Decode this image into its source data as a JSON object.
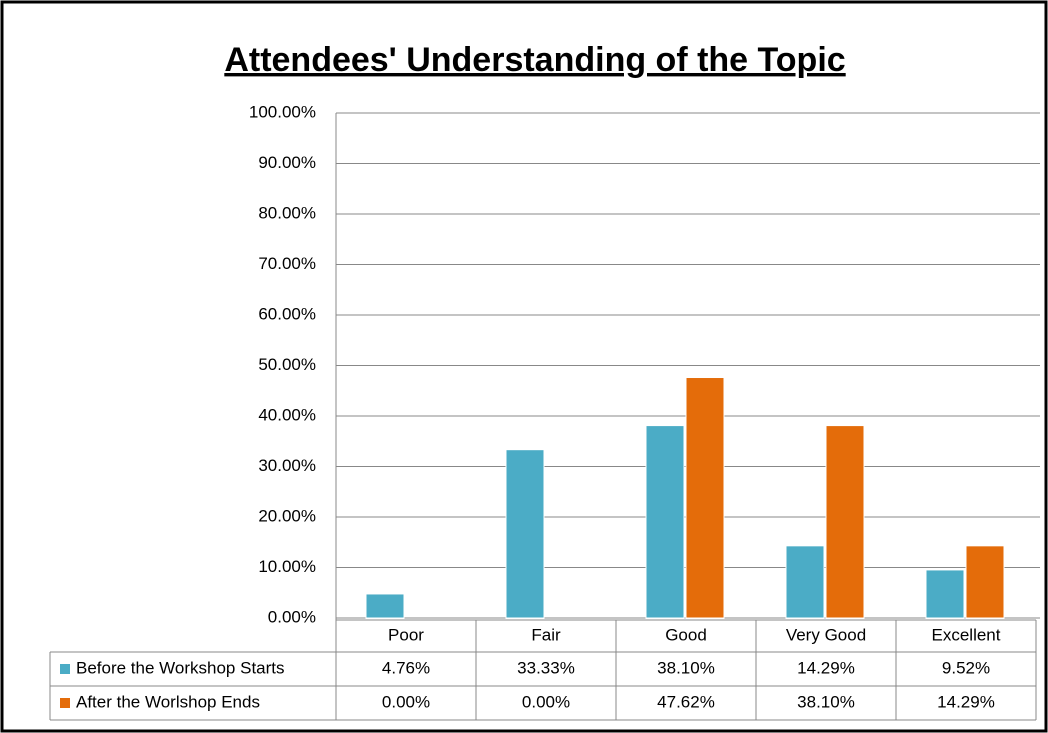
{
  "chart_data": {
    "type": "bar",
    "title": "Attendees' Understanding of the Topic",
    "categories": [
      "Poor",
      "Fair",
      "Good",
      "Very Good",
      "Excellent"
    ],
    "series": [
      {
        "name": "Before the Workshop Starts",
        "color": "#4bacc6",
        "values": [
          4.76,
          33.33,
          38.1,
          14.29,
          9.52
        ],
        "value_labels": [
          "4.76%",
          "33.33%",
          "38.10%",
          "14.29%",
          "9.52%"
        ]
      },
      {
        "name": "After the Worlshop Ends",
        "color": "#e46c0a",
        "values": [
          0,
          0,
          47.62,
          38.1,
          14.29
        ],
        "value_labels": [
          "0.00%",
          "0.00%",
          "47.62%",
          "38.10%",
          "14.29%"
        ]
      }
    ],
    "ylim": [
      0,
      100
    ],
    "yticks": [
      {
        "value": 0,
        "label": "0.00%"
      },
      {
        "value": 10,
        "label": "10.00%"
      },
      {
        "value": 20,
        "label": "20.00%"
      },
      {
        "value": 30,
        "label": "30.00%"
      },
      {
        "value": 40,
        "label": "40.00%"
      },
      {
        "value": 50,
        "label": "50.00%"
      },
      {
        "value": 60,
        "label": "60.00%"
      },
      {
        "value": 70,
        "label": "70.00%"
      },
      {
        "value": 80,
        "label": "80.00%"
      },
      {
        "value": 90,
        "label": "90.00%"
      },
      {
        "value": 100,
        "label": "100.00%"
      }
    ],
    "grid": true
  }
}
